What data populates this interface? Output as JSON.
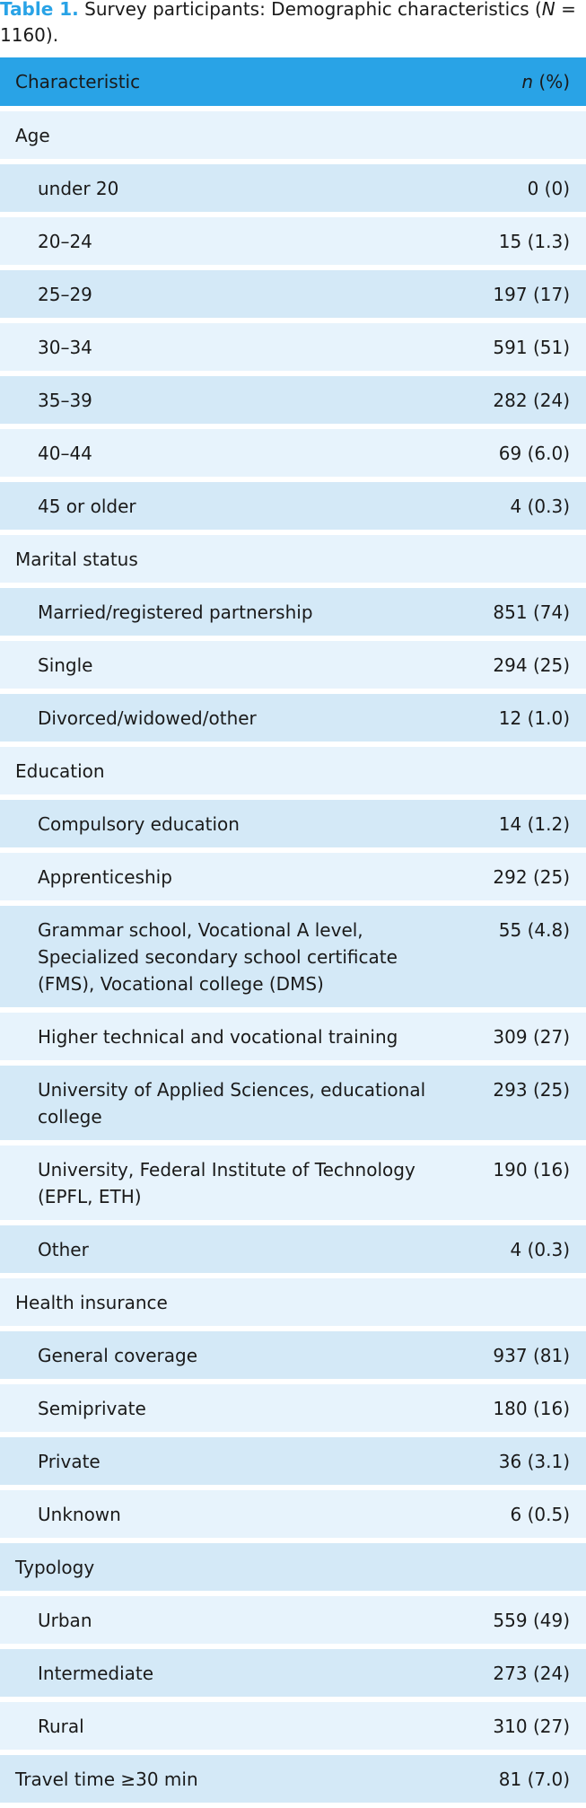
{
  "caption": {
    "label": "Table 1.",
    "text": "Survey participants: Demographic characteristics (",
    "n_symbol": "N",
    "n_text": "= 1160)."
  },
  "header": {
    "characteristic": "Characteristic",
    "n_symbol": "n",
    "unit": "(%)"
  },
  "rows": [
    {
      "label": "Age",
      "indent": false
    },
    {
      "label": "under 20",
      "value": "0 (0)",
      "indent": true
    },
    {
      "label": "20–24",
      "value": "15 (1.3)",
      "indent": true
    },
    {
      "label": "25–29",
      "value": "197 (17)",
      "indent": true
    },
    {
      "label": "30–34",
      "value": "591 (51)",
      "indent": true
    },
    {
      "label": "35–39",
      "value": "282 (24)",
      "indent": true
    },
    {
      "label": "40–44",
      "value": "69 (6.0)",
      "indent": true
    },
    {
      "label": "45 or older",
      "value": "4 (0.3)",
      "indent": true
    },
    {
      "label": "Marital status",
      "indent": false
    },
    {
      "label": "Married/registered partnership",
      "value": "851 (74)",
      "indent": true
    },
    {
      "label": "Single",
      "value": "294 (25)",
      "indent": true
    },
    {
      "label": "Divorced/widowed/other",
      "value": "12 (1.0)",
      "indent": true
    },
    {
      "label": "Education",
      "indent": false
    },
    {
      "label": "Compulsory education",
      "value": "14 (1.2)",
      "indent": true
    },
    {
      "label": "Apprenticeship",
      "value": "292 (25)",
      "indent": true
    },
    {
      "label": "Grammar school, Vocational A level, Specialized secondary school certificate (FMS), Vocational college (DMS)",
      "value": "55 (4.8)",
      "indent": true
    },
    {
      "label": "Higher technical and vocational training",
      "value": "309 (27)",
      "indent": true
    },
    {
      "label": "University of Applied Sciences, educational college",
      "value": "293 (25)",
      "indent": true
    },
    {
      "label": "University, Federal Institute of Technology (EPFL, ETH)",
      "value": "190 (16)",
      "indent": true
    },
    {
      "label": "Other",
      "value": "4 (0.3)",
      "indent": true
    },
    {
      "label": "Health insurance",
      "indent": false
    },
    {
      "label": "General coverage",
      "value": "937 (81)",
      "indent": true
    },
    {
      "label": "Semiprivate",
      "value": "180 (16)",
      "indent": true
    },
    {
      "label": "Private",
      "value": "36 (3.1)",
      "indent": true
    },
    {
      "label": "Unknown",
      "value": "6 (0.5)",
      "indent": true
    },
    {
      "label": "Typology",
      "indent": false
    },
    {
      "label": "Urban",
      "value": "559 (49)",
      "indent": true
    },
    {
      "label": "Intermediate",
      "value": "273 (24)",
      "indent": true
    },
    {
      "label": "Rural",
      "value": "310 (27)",
      "indent": true
    },
    {
      "label": "Travel time ≥30 min",
      "value": "81 (7.0)",
      "indent": false
    }
  ]
}
